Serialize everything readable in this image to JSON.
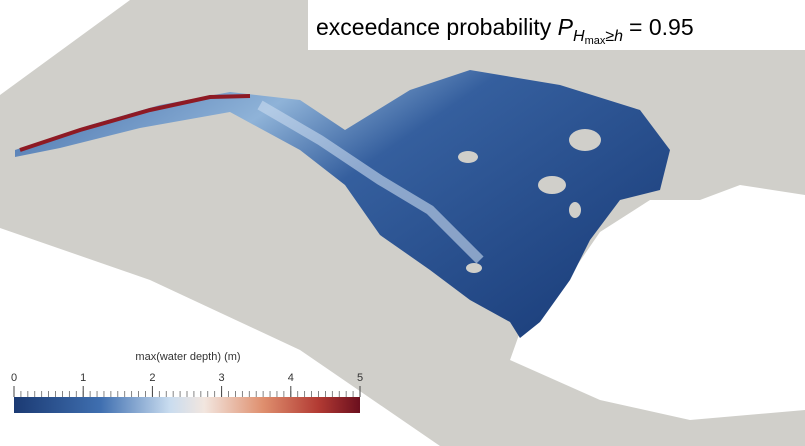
{
  "annotation": {
    "text": "exceedance probability",
    "symbol": "P",
    "subscript": "H",
    "subsubscript": "max",
    "relation": "≥",
    "variable": "h",
    "equals": "=",
    "value": 0.95
  },
  "colorbar": {
    "title": "max(water depth) (m)",
    "range": [
      0,
      5
    ],
    "ticks": [
      0,
      1,
      2,
      3,
      4,
      5
    ]
  }
}
